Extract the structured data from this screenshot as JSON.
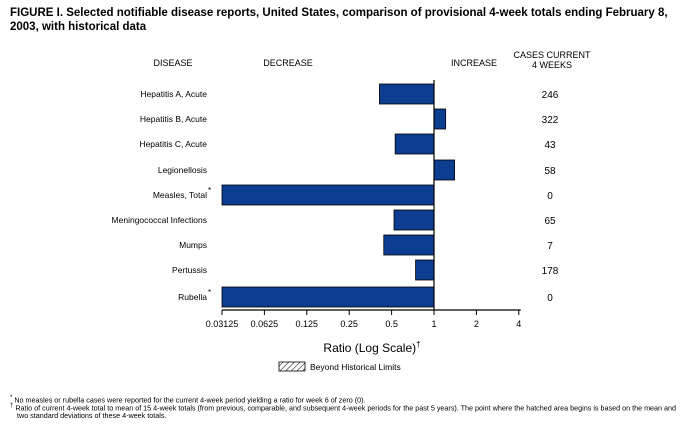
{
  "title": "FIGURE I. Selected notifiable disease reports, United States, comparison of provisional 4-week totals ending February 8, 2003, with historical data",
  "chart_data": {
    "type": "bar",
    "orientation": "horizontal",
    "x_scale": "log2",
    "headers": {
      "disease": "DISEASE",
      "decrease": "DECREASE",
      "increase": "INCREASE",
      "cases_line1": "CASES CURRENT",
      "cases_line2": "4 WEEKS"
    },
    "categories": [
      "Hepatitis A, Acute",
      "Hepatitis B, Acute",
      "Hepatitis C, Acute",
      "Legionellosis",
      "Measles, Total",
      "Meningococcal Infections",
      "Mumps",
      "Pertussis",
      "Rubella"
    ],
    "markers": [
      "",
      "",
      "",
      "",
      "*",
      "",
      "",
      "",
      "*"
    ],
    "values": [
      0.41,
      1.21,
      0.53,
      1.4,
      0.03125,
      0.52,
      0.44,
      0.74,
      0.03125
    ],
    "cases": [
      "246",
      "322",
      "43",
      "58",
      "0",
      "65",
      "7",
      "178",
      "0"
    ],
    "xticks": [
      "0.03125",
      "0.0625",
      "0.125",
      "0.25",
      "0.5",
      "1",
      "2",
      "4"
    ],
    "xlim": [
      0.03125,
      4
    ],
    "xlabel": "Ratio (Log Scale)",
    "xlabel_marker": "†",
    "legend": "Beyond Historical Limits",
    "bar_color": "#0d3d91"
  },
  "footnotes": [
    {
      "mark": "*",
      "text": "No measles or rubella cases were reported for the current 4-week period yielding a ratio for week 6 of zero (0)."
    },
    {
      "mark": "†",
      "text": "Ratio of current 4-week total to mean of 15 4-week totals (from previous, comparable, and subsequent 4-week periods for the past 5 years). The point where the hatched area begins is based on the mean and two standard deviations of these 4-week totals."
    }
  ]
}
